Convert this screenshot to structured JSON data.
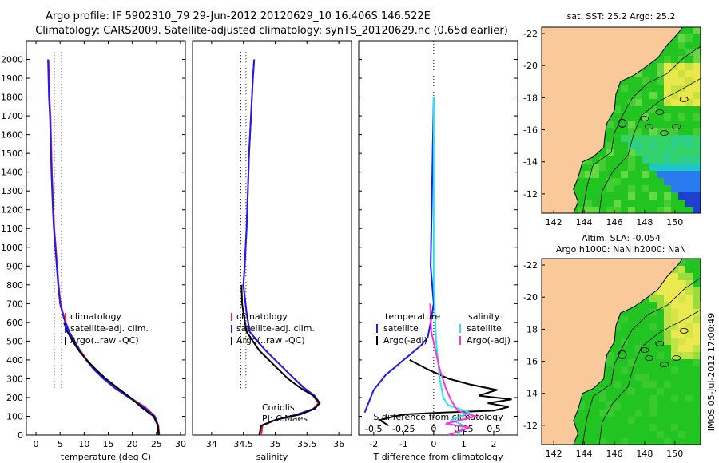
{
  "header": {
    "line1": "Argo profile: IF 5902310_79 29-Jun-2012 20120629_10 16.406S 146.522E",
    "line2": "Climatology: CARS2009. Satellite-adjusted climatology: synTS_20120629.nc (0.65d earlier)"
  },
  "side_label": "IMOS 05-Jul-2012 17:00:49",
  "colors": {
    "climatology": "#ff2020",
    "satellite": "#1a1aff",
    "argo": "#000000",
    "salinity_satellite": "#22e6f2",
    "salinity_argo": "#ff33dd",
    "land": "#f9c99a",
    "sea_green": "#22c422",
    "sea_yellow": "#e8e84a",
    "sea_blue": "#2a7bf0"
  },
  "chart_data": [
    {
      "type": "line",
      "id": "temperature",
      "xlabel": "temperature (deg C)",
      "ylabel": "",
      "xlim": [
        -2,
        31
      ],
      "ylim": [
        2100,
        0
      ],
      "xticks": [
        0,
        5,
        10,
        15,
        20,
        25,
        30
      ],
      "yticks": [
        0,
        100,
        200,
        300,
        400,
        500,
        600,
        700,
        800,
        900,
        1000,
        1100,
        1200,
        1300,
        1400,
        1500,
        1600,
        1700,
        1800,
        1900,
        2000
      ],
      "legend": [
        "climatology",
        "satellite-adj. clim.",
        "Argo(..raw -QC)"
      ],
      "legend_position": "lower-right",
      "series": [
        {
          "name": "climatology",
          "color": "#ff2020",
          "x": [
            25.6,
            25.4,
            24.7,
            22.6,
            19.5,
            16.6,
            14.2,
            12.2,
            10.6,
            9.2,
            8.0,
            6.9,
            6.2,
            5.6,
            5.1,
            4.7,
            4.4,
            4.1,
            3.8,
            3.6,
            3.3,
            3.1,
            3.0,
            2.8,
            2.6
          ],
          "y": [
            0,
            50,
            100,
            150,
            200,
            250,
            300,
            350,
            400,
            450,
            500,
            550,
            600,
            650,
            700,
            800,
            900,
            1000,
            1100,
            1200,
            1400,
            1600,
            1700,
            1800,
            2000
          ]
        },
        {
          "name": "satellite-adj. clim.",
          "color": "#1a1aff",
          "x": [
            25.4,
            25.3,
            24.6,
            22.3,
            19.3,
            16.4,
            14.0,
            12.0,
            10.4,
            9.1,
            7.9,
            6.9,
            6.1,
            5.5,
            5.0,
            4.6,
            4.3,
            4.0,
            3.7,
            3.5,
            3.2,
            3.0,
            2.9,
            2.7,
            2.5
          ],
          "y": [
            0,
            50,
            100,
            150,
            200,
            250,
            300,
            350,
            400,
            450,
            500,
            550,
            600,
            650,
            700,
            800,
            900,
            1000,
            1100,
            1200,
            1400,
            1600,
            1700,
            1800,
            2000
          ]
        },
        {
          "name": "Argo(..raw -QC)",
          "color": "#000000",
          "x": [
            25.5,
            25.3,
            24.4,
            21.8,
            19.6,
            17.0,
            14.5,
            12.4,
            10.5,
            8.9,
            7.6,
            6.5,
            5.8
          ],
          "y": [
            0,
            50,
            100,
            150,
            200,
            250,
            300,
            350,
            400,
            450,
            500,
            550,
            600
          ]
        }
      ],
      "dotted_x": [
        3.8,
        5.3
      ]
    },
    {
      "type": "line",
      "id": "salinity",
      "xlabel": "salinity",
      "ylabel": "",
      "xlim": [
        33.7,
        36.2
      ],
      "ylim": [
        2100,
        0
      ],
      "xticks": [
        34,
        34.5,
        35,
        35.5,
        36
      ],
      "legend": [
        "climatology",
        "satellite-adj. clim.",
        "Argo(..raw -QC)"
      ],
      "legend_position": "lower-right",
      "annotation": [
        "Coriolis",
        "PI: C.Maes"
      ],
      "series": [
        {
          "name": "climatology",
          "color": "#ff2020",
          "x": [
            34.78,
            34.8,
            35.0,
            35.35,
            35.6,
            35.68,
            35.6,
            35.45,
            35.3,
            35.15,
            35.0,
            34.85,
            34.72,
            34.6,
            34.55,
            34.5,
            34.52,
            34.55,
            34.57,
            34.59,
            34.62,
            34.65,
            34.67
          ],
          "y": [
            0,
            50,
            80,
            110,
            140,
            170,
            210,
            250,
            300,
            350,
            400,
            450,
            500,
            550,
            650,
            800,
            900,
            1100,
            1300,
            1500,
            1700,
            1900,
            2000
          ]
        },
        {
          "name": "satellite-adj. clim.",
          "color": "#1a1aff",
          "x": [
            34.75,
            34.78,
            35.0,
            35.35,
            35.6,
            35.7,
            35.62,
            35.46,
            35.3,
            35.15,
            35.0,
            34.85,
            34.72,
            34.6,
            34.55,
            34.5,
            34.52,
            34.55,
            34.57,
            34.59,
            34.62,
            34.65,
            34.67
          ],
          "y": [
            0,
            50,
            80,
            110,
            140,
            170,
            210,
            250,
            300,
            350,
            400,
            450,
            500,
            550,
            650,
            800,
            900,
            1100,
            1300,
            1500,
            1700,
            1900,
            2000
          ]
        },
        {
          "name": "Argo(..raw -QC)",
          "color": "#000000",
          "x": [
            34.75,
            34.78,
            35.0,
            35.4,
            35.62,
            35.7,
            35.6,
            35.4,
            35.2,
            35.05,
            34.9,
            34.75,
            34.65,
            34.55,
            34.5,
            34.48,
            34.47
          ],
          "y": [
            0,
            50,
            80,
            110,
            140,
            170,
            210,
            250,
            300,
            350,
            400,
            450,
            500,
            550,
            650,
            700,
            800
          ]
        }
      ],
      "dotted_x": [
        34.46,
        34.54
      ]
    },
    {
      "type": "line",
      "id": "difference",
      "xlabel": "T difference from climatology",
      "x2label": "S difference from climatology",
      "ylabel": "",
      "xlim": [
        -2.5,
        2.8
      ],
      "ylim": [
        2100,
        0
      ],
      "xticks": [
        -2,
        -1,
        0,
        1,
        2
      ],
      "x2ticks": [
        -0.5,
        -0.25,
        0,
        0.25,
        0.5
      ],
      "legend_titles": [
        "temperature",
        "salinity"
      ],
      "legend": [
        "satellite",
        "Argo(-adj)",
        "satellite",
        "Argo(-adj)"
      ],
      "series": [
        {
          "name": "satellite",
          "group": "temperature",
          "color": "#1a1aff",
          "x": [
            -2.3,
            -2.1,
            -2.0,
            -1.8,
            -1.6,
            -1.3,
            -1.0,
            -0.7,
            -0.4,
            -0.2,
            -0.1,
            0.0,
            -0.05,
            -0.1,
            0.0
          ],
          "y": [
            120,
            200,
            240,
            280,
            320,
            360,
            400,
            440,
            480,
            520,
            600,
            700,
            800,
            900,
            1800
          ]
        },
        {
          "name": "Argo(-adj)",
          "group": "temperature",
          "color": "#000000",
          "x": [
            -1.5,
            -1.8,
            -1.3,
            -1.0,
            0.3,
            2.0,
            2.5,
            1.8,
            2.6,
            1.5,
            2.1,
            1.2,
            0.5,
            -0.2,
            -0.8
          ],
          "y": [
            50,
            80,
            100,
            110,
            120,
            130,
            150,
            170,
            190,
            210,
            240,
            270,
            300,
            350,
            400
          ]
        },
        {
          "name": "satellite",
          "group": "salinity",
          "color": "#22e6f2",
          "x": [
            0.2,
            0.25,
            0.15,
            0.3,
            0.12,
            0.08,
            0.05,
            0.02,
            0.0,
            0.0,
            0.0
          ],
          "y": [
            0,
            50,
            80,
            120,
            160,
            200,
            300,
            500,
            800,
            1200,
            1800
          ]
        },
        {
          "name": "Argo(-adj)",
          "group": "salinity",
          "color": "#ff33dd",
          "x": [
            0.12,
            0.3,
            0.1,
            0.35,
            0.2,
            0.15,
            0.1,
            0.05,
            -0.02,
            -0.03
          ],
          "y": [
            0,
            40,
            60,
            100,
            130,
            180,
            250,
            350,
            550,
            700
          ]
        }
      ]
    },
    {
      "type": "heatmap",
      "id": "sst-map",
      "title": "sat. SST: 25.2 Argo: 25.2",
      "xlim": [
        141.2,
        151.7
      ],
      "ylim": [
        -22.4,
        -10.8
      ],
      "xticks": [
        142,
        144,
        146,
        148,
        150
      ],
      "yticks": [
        -12,
        -14,
        -16,
        -18,
        -20,
        -22
      ],
      "marker": {
        "lon": 146.52,
        "lat": -16.41
      }
    },
    {
      "type": "heatmap",
      "id": "sla-map",
      "title": "Altim. SLA: -0.054",
      "subtitle": "Argo h1000: NaN h2000: NaN",
      "xlim": [
        141.2,
        151.7
      ],
      "ylim": [
        -22.4,
        -10.8
      ],
      "xticks": [
        142,
        144,
        146,
        148,
        150
      ],
      "yticks": [
        -12,
        -14,
        -16,
        -18,
        -20,
        -22
      ],
      "marker": {
        "lon": 146.52,
        "lat": -16.41
      }
    }
  ]
}
